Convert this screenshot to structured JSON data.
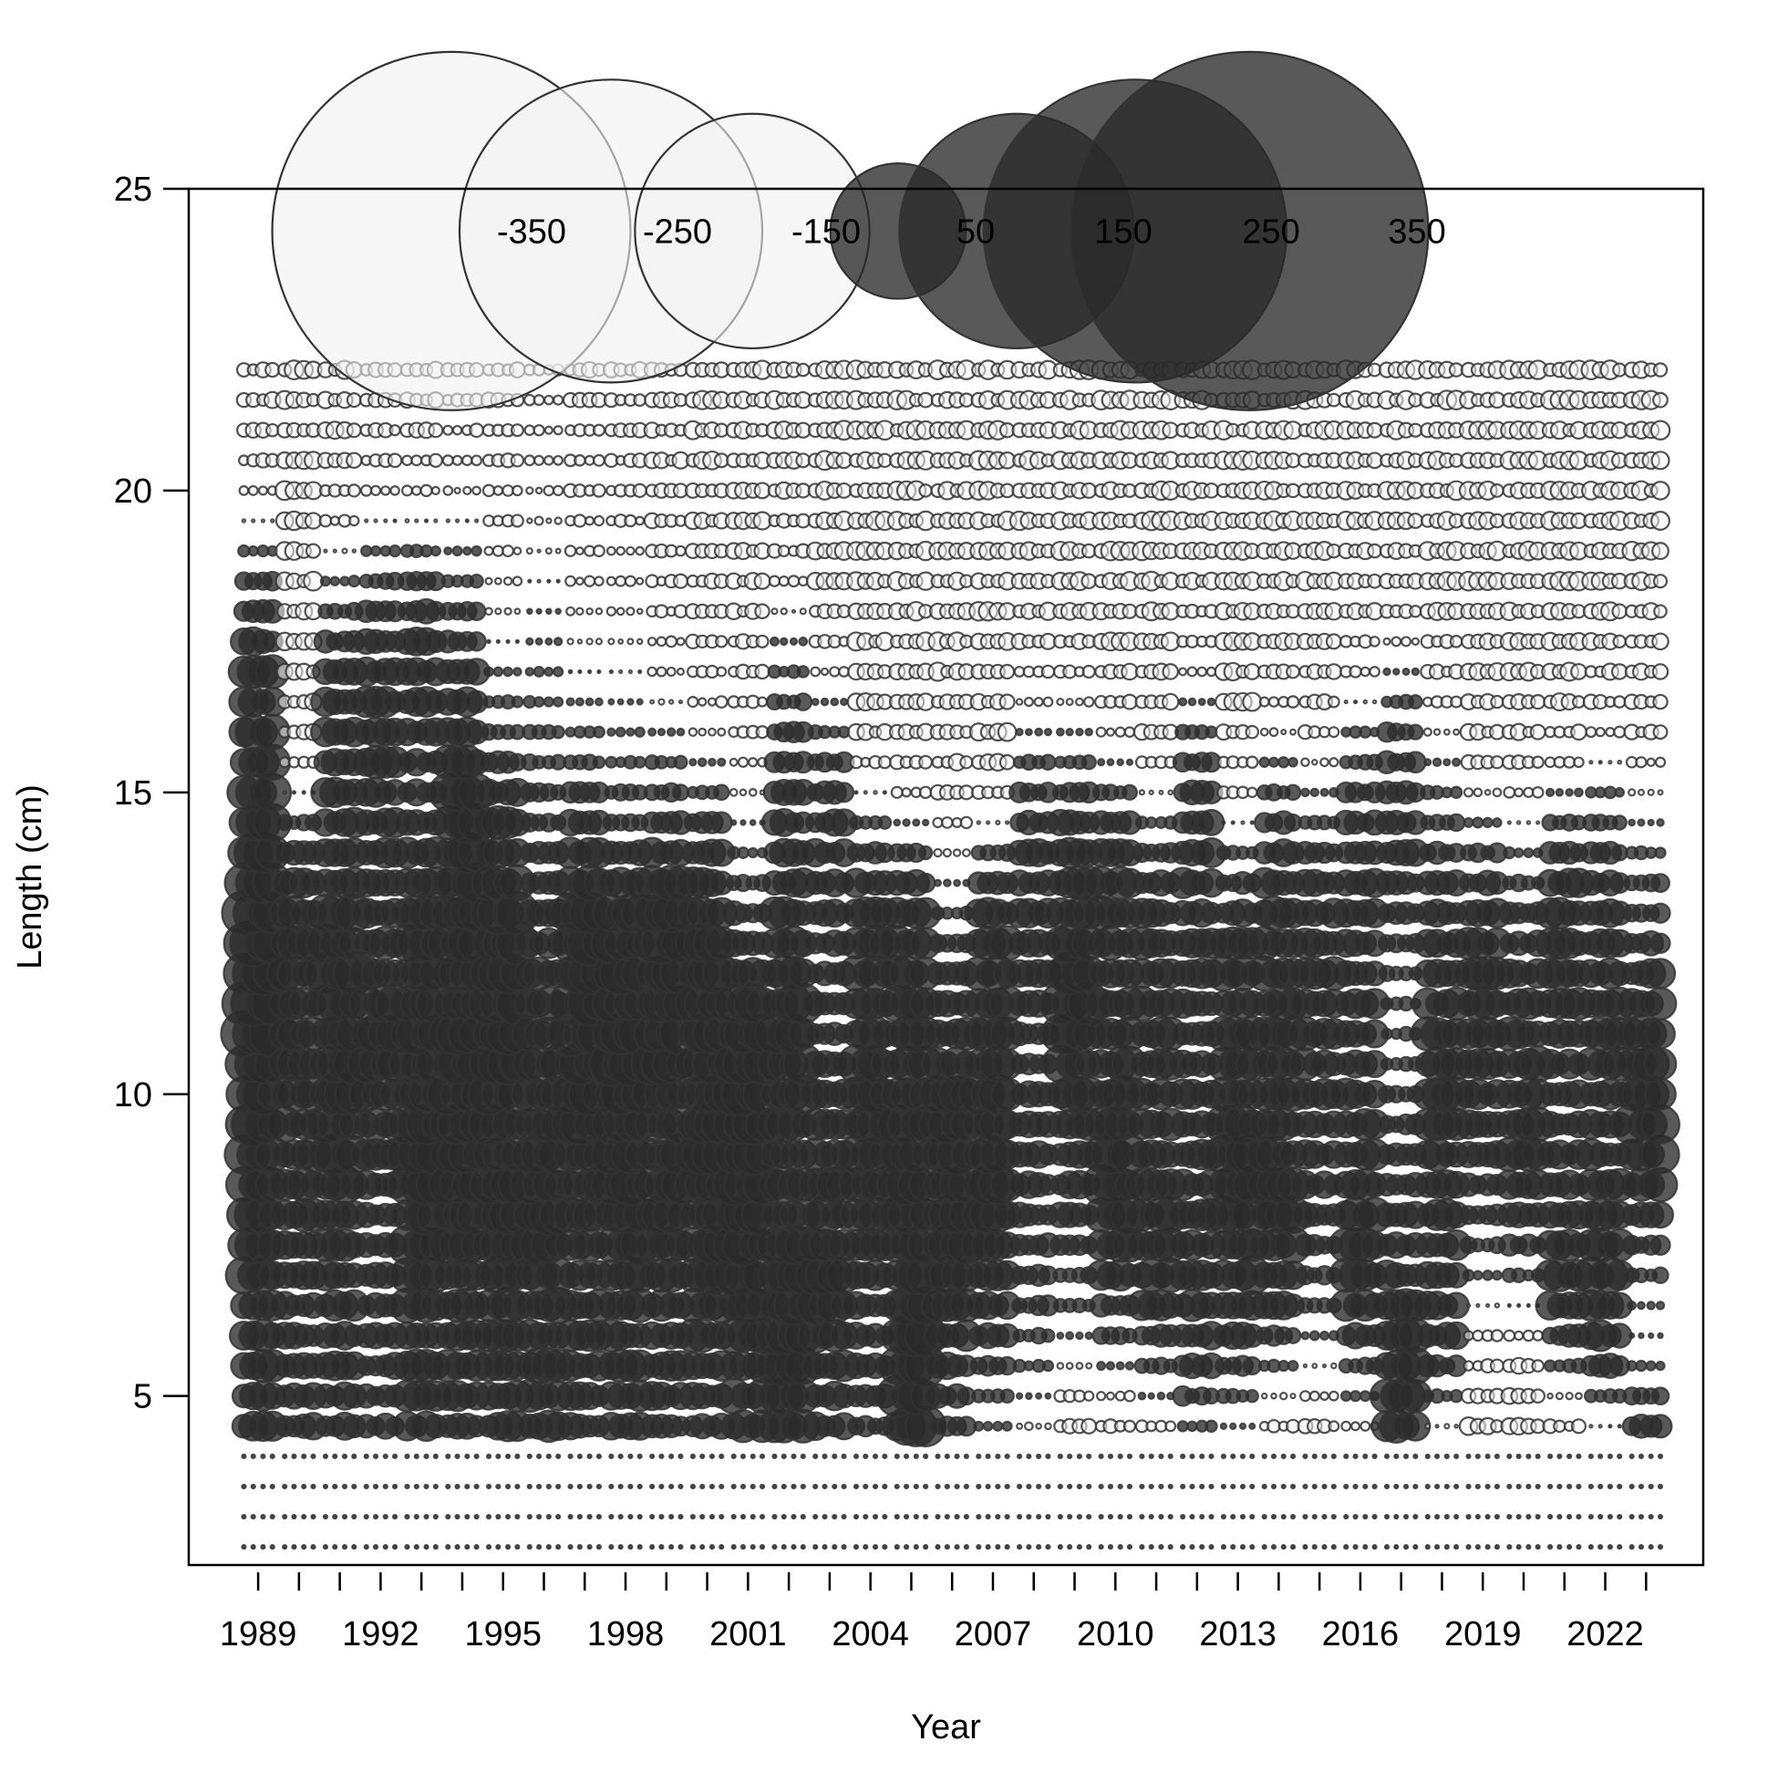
{
  "chart_data": {
    "type": "scatter",
    "subtype": "bubble",
    "xlabel": "Year",
    "ylabel": "Length (cm)",
    "xlim": [
      1987.3,
      2024.4
    ],
    "ylim": [
      2.2,
      25
    ],
    "x_ticks": [
      1989,
      1992,
      1995,
      1998,
      2001,
      2004,
      2007,
      2010,
      2013,
      2016,
      2019,
      2022
    ],
    "x_minor_ticks": [
      1989,
      1990,
      1991,
      1992,
      1993,
      1994,
      1995,
      1996,
      1997,
      1998,
      1999,
      2000,
      2001,
      2002,
      2003,
      2004,
      2005,
      2006,
      2007,
      2008,
      2009,
      2010,
      2011,
      2012,
      2013,
      2014,
      2015,
      2016,
      2017,
      2018,
      2019,
      2020,
      2021,
      2022,
      2023
    ],
    "y_ticks": [
      5,
      10,
      15,
      20,
      25
    ],
    "length_bins": [
      2.5,
      3,
      3.5,
      4,
      4.5,
      5,
      5.5,
      6,
      6.5,
      7,
      7.5,
      8,
      8.5,
      9,
      9.5,
      10,
      10.5,
      11,
      11.5,
      12,
      12.5,
      13,
      13.5,
      14,
      14.5,
      15,
      15.5,
      16,
      16.5,
      17,
      17.5,
      18,
      18.5,
      19,
      19.5,
      20,
      20.5,
      21,
      21.5,
      22
    ],
    "encoding": {
      "negative_fill": "#f2f2f2",
      "positive_fill": "#2a2a2a",
      "stroke": "#333333"
    },
    "legend": {
      "position": "top",
      "entries": [
        {
          "label": "-350",
          "value": -350
        },
        {
          "label": "-250",
          "value": -250
        },
        {
          "label": "-150",
          "value": -150
        },
        {
          "label": "50",
          "value": 50
        },
        {
          "label": "150",
          "value": 150
        },
        {
          "label": "250",
          "value": 250
        },
        {
          "label": "350",
          "value": 350
        }
      ]
    },
    "year_profiles": [
      {
        "year": 1989,
        "pos": [
          [
            10.5,
            3.5
          ],
          [
            5,
            7
          ],
          [
            16.5,
            1.6
          ],
          [
            12,
            1.8
          ]
        ]
      },
      {
        "year": 1990,
        "pos": [
          [
            10,
            2
          ],
          [
            5,
            4
          ],
          [
            13,
            1.2
          ]
        ]
      },
      {
        "year": 1991,
        "pos": [
          [
            9.5,
            2
          ],
          [
            5,
            6
          ],
          [
            12,
            1.4
          ],
          [
            16,
            1.8
          ]
        ]
      },
      {
        "year": 1992,
        "pos": [
          [
            5,
            7
          ],
          [
            16,
            2
          ],
          [
            11,
            1.6
          ]
        ]
      },
      {
        "year": 1993,
        "pos": [
          [
            5,
            7
          ],
          [
            9,
            2.5
          ],
          [
            17,
            1.4
          ],
          [
            12.5,
            1.5
          ]
        ]
      },
      {
        "year": 1994,
        "pos": [
          [
            5,
            8
          ],
          [
            10,
            3
          ],
          [
            14.5,
            2.5
          ]
        ]
      },
      {
        "year": 1995,
        "pos": [
          [
            5,
            8
          ],
          [
            9.5,
            3
          ],
          [
            13,
            1.6
          ]
        ]
      },
      {
        "year": 1996,
        "pos": [
          [
            5,
            9
          ],
          [
            9,
            3
          ]
        ]
      },
      {
        "year": 1997,
        "pos": [
          [
            5,
            8
          ],
          [
            10,
            2.4
          ],
          [
            12.5,
            1.4
          ]
        ]
      },
      {
        "year": 1998,
        "pos": [
          [
            5,
            8
          ],
          [
            9,
            2.5
          ],
          [
            12,
            1.4
          ]
        ]
      },
      {
        "year": 1999,
        "pos": [
          [
            5,
            7
          ],
          [
            9.5,
            2.2
          ],
          [
            12.5,
            1.6
          ]
        ]
      },
      {
        "year": 2000,
        "pos": [
          [
            5,
            6
          ],
          [
            9,
            2.2
          ],
          [
            12.5,
            1.6
          ]
        ]
      },
      {
        "year": 2001,
        "pos": [
          [
            5,
            6
          ],
          [
            8,
            2.5
          ],
          [
            11,
            1.4
          ]
        ]
      },
      {
        "year": 2002,
        "pos": [
          [
            4.5,
            3
          ],
          [
            7,
            2.5
          ],
          [
            14,
            2.6
          ],
          [
            11,
            1.4
          ]
        ]
      },
      {
        "year": 2003,
        "pos": [
          [
            6,
            2.4
          ],
          [
            8.5,
            2.4
          ],
          [
            14,
            1.8
          ]
        ]
      },
      {
        "year": 2004,
        "pos": [
          [
            7,
            3.5
          ],
          [
            10,
            1.6
          ],
          [
            13,
            1.2
          ]
        ]
      },
      {
        "year": 2005,
        "pos": [
          [
            7,
            3
          ],
          [
            9,
            2.5
          ],
          [
            4.5,
            1.5
          ],
          [
            12.5,
            1.2
          ]
        ]
      },
      {
        "year": 2006,
        "pos": [
          [
            7.5,
            3
          ],
          [
            9.5,
            2.4
          ]
        ]
      },
      {
        "year": 2007,
        "pos": [
          [
            8,
            2.5
          ],
          [
            9.5,
            2
          ],
          [
            12.5,
            1.2
          ]
        ]
      },
      {
        "year": 2008,
        "pos": [
          [
            8.5,
            2.5
          ],
          [
            13.5,
            1.8
          ]
        ]
      },
      {
        "year": 2009,
        "pos": [
          [
            9,
            2.2
          ],
          [
            13.5,
            1.8
          ],
          [
            11.5,
            1.3
          ]
        ]
      },
      {
        "year": 2010,
        "pos": [
          [
            10,
            2.5
          ],
          [
            13,
            1.6
          ],
          [
            8,
            1.4
          ]
        ]
      },
      {
        "year": 2011,
        "pos": [
          [
            9.5,
            2
          ],
          [
            12.5,
            1.6
          ],
          [
            7,
            1.3
          ]
        ]
      },
      {
        "year": 2012,
        "pos": [
          [
            10,
            2.2
          ],
          [
            14,
            1.8
          ],
          [
            6.5,
            1.6
          ]
        ]
      },
      {
        "year": 2013,
        "pos": [
          [
            9,
            2.5
          ],
          [
            12,
            1.5
          ],
          [
            7.5,
            1.6
          ]
        ]
      },
      {
        "year": 2014,
        "pos": [
          [
            10,
            2.3
          ],
          [
            13,
            1.8
          ],
          [
            7.5,
            1.4
          ]
        ]
      },
      {
        "year": 2015,
        "pos": [
          [
            9,
            2.3
          ],
          [
            12.5,
            1.8
          ]
        ]
      },
      {
        "year": 2016,
        "pos": [
          [
            9.5,
            2
          ],
          [
            13.5,
            2
          ],
          [
            7,
            1.4
          ]
        ]
      },
      {
        "year": 2017,
        "pos": [
          [
            7.5,
            2.5
          ],
          [
            14.5,
            1.8
          ],
          [
            5,
            1.2
          ]
        ]
      },
      {
        "year": 2018,
        "pos": [
          [
            12.5,
            2.2
          ],
          [
            9.5,
            1.6
          ],
          [
            6.5,
            1.3
          ]
        ]
      },
      {
        "year": 2019,
        "pos": [
          [
            9.5,
            2
          ],
          [
            12.5,
            1.5
          ]
        ]
      },
      {
        "year": 2020,
        "pos": [
          [
            11.5,
            2
          ],
          [
            9,
            1.6
          ]
        ]
      },
      {
        "year": 2021,
        "pos": [
          [
            10,
            2
          ],
          [
            13,
            1.4
          ],
          [
            7,
            1.2
          ]
        ]
      },
      {
        "year": 2022,
        "pos": [
          [
            12.5,
            2
          ],
          [
            9,
            2
          ],
          [
            6.5,
            1.2
          ]
        ]
      },
      {
        "year": 2023,
        "pos": [
          [
            11,
            2.5
          ],
          [
            9.5,
            1.6
          ],
          [
            4,
            1
          ]
        ]
      }
    ]
  }
}
